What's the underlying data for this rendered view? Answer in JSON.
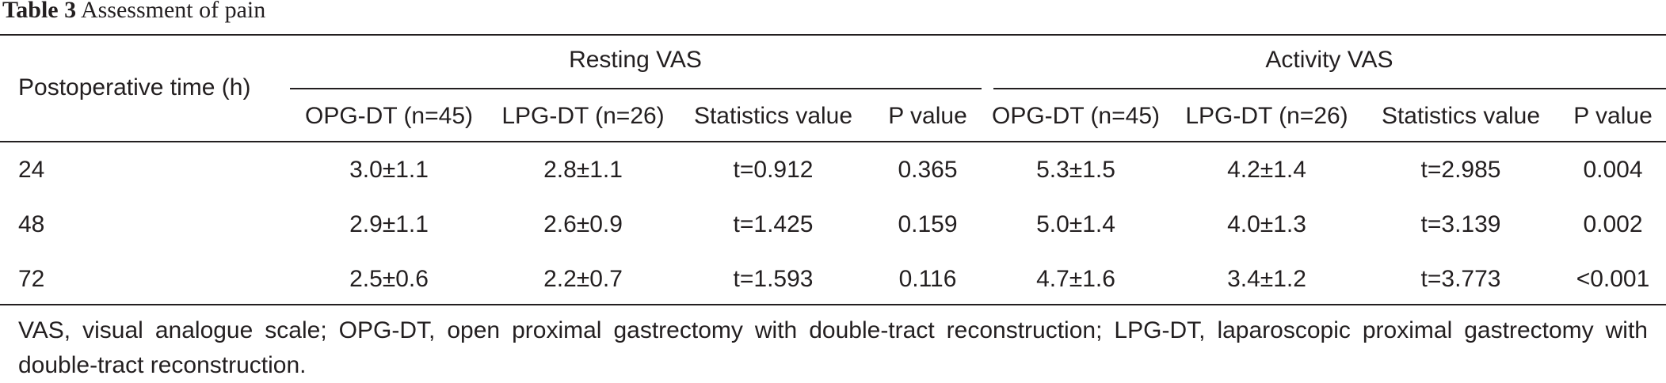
{
  "caption": {
    "label": "Table 3",
    "title": "Assessment of pain"
  },
  "table": {
    "row_header": "Postoperative time (h)",
    "groups": [
      "Resting VAS",
      "Activity VAS"
    ],
    "columns": [
      "OPG-DT (n=45)",
      "LPG-DT (n=26)",
      "Statistics value",
      "P value",
      "OPG-DT (n=45)",
      "LPG-DT (n=26)",
      "Statistics value",
      "P value"
    ],
    "rows": [
      {
        "time": "24",
        "cells": [
          "3.0±1.1",
          "2.8±1.1",
          "t=0.912",
          "0.365",
          "5.3±1.5",
          "4.2±1.4",
          "t=2.985",
          "0.004"
        ]
      },
      {
        "time": "48",
        "cells": [
          "2.9±1.1",
          "2.6±0.9",
          "t=1.425",
          "0.159",
          "5.0±1.4",
          "4.0±1.3",
          "t=3.139",
          "0.002"
        ]
      },
      {
        "time": "72",
        "cells": [
          "2.5±0.6",
          "2.2±0.7",
          "t=1.593",
          "0.116",
          "4.7±1.6",
          "3.4±1.2",
          "t=3.773",
          "<0.001"
        ]
      }
    ]
  },
  "footnote": "VAS, visual analogue scale; OPG-DT, open proximal gastrectomy with double-tract reconstruction; LPG-DT, laparoscopic proximal gastrectomy with double-tract reconstruction."
}
